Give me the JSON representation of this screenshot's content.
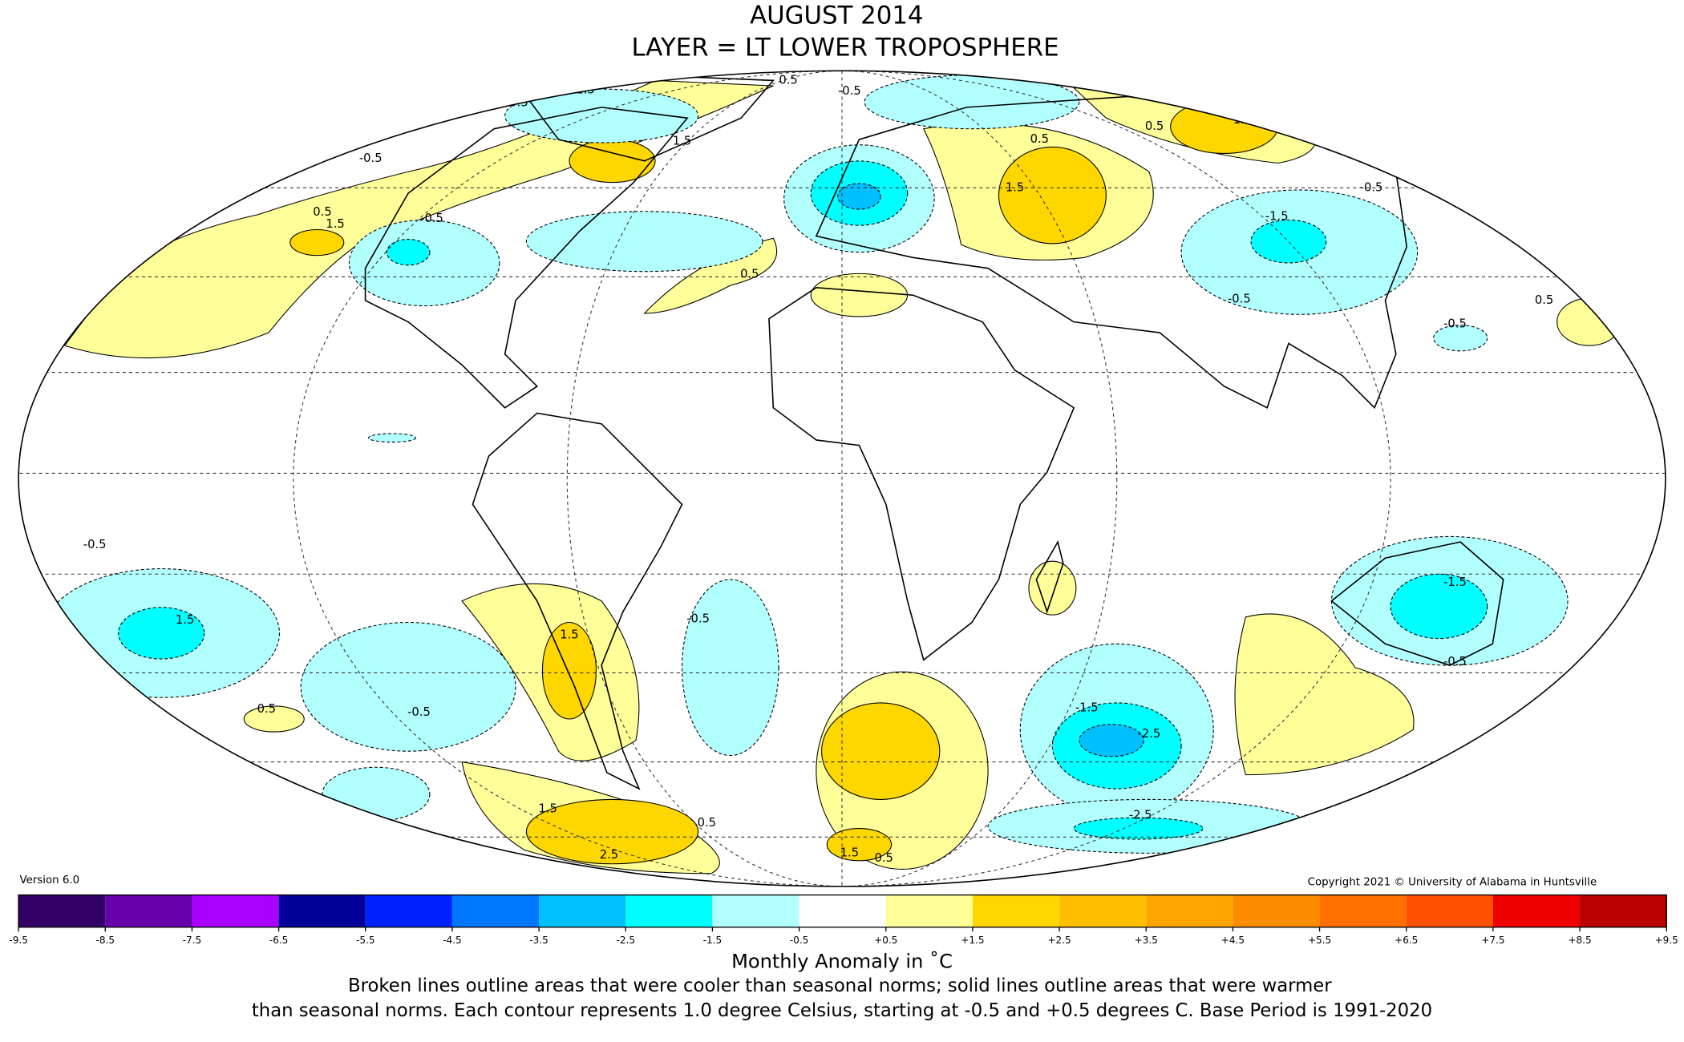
{
  "header": {
    "title": "AUGUST 2014",
    "subtitle": "LAYER = LT LOWER TROPOSPHERE"
  },
  "map": {
    "contour_labels": [
      "1.5",
      "0.5",
      "0.5",
      "-0.5",
      "0.5",
      "1.5",
      "-0.5",
      "1.5",
      "-0.5",
      "0.5",
      "1.5",
      "1.5",
      "0.5",
      "-0.5",
      "0.5",
      "-0.5",
      "-0.5",
      "-1.5",
      "0.5",
      "-0.5",
      "1.5",
      "-0.5",
      "-1.5",
      "-2.5",
      "-1.5",
      "-0.5",
      "1.5",
      "0.5",
      "1.5",
      "0.5",
      "2.5",
      "-2.5",
      "1.5",
      "-0.5",
      "0.5"
    ]
  },
  "footer": {
    "version": "Version 6.0",
    "copyright": "Copyright 2021 © University of Alabama in Huntsville"
  },
  "colorbar": {
    "colors": [
      "#330066",
      "#6600aa",
      "#aa00ff",
      "#000099",
      "#0022ff",
      "#0077ff",
      "#00c0ff",
      "#00ffff",
      "#b2ffff",
      "#ffffff",
      "#ffff99",
      "#ffd700",
      "#ffbf00",
      "#ffa500",
      "#ff8c00",
      "#ff7000",
      "#ff5000",
      "#ee0000",
      "#bb0000"
    ],
    "ticks": [
      -9.5,
      -8.5,
      -7.5,
      -6.5,
      -5.5,
      -4.5,
      -3.5,
      -2.5,
      -1.5,
      -0.5,
      {
        "value": 0.5,
        "label": "+0.5"
      },
      {
        "value": 1.5,
        "label": "+1.5"
      },
      {
        "value": 2.5,
        "label": "+2.5"
      },
      {
        "value": 3.5,
        "label": "+3.5"
      },
      {
        "value": 4.5,
        "label": "+4.5"
      },
      {
        "value": 5.5,
        "label": "+5.5"
      },
      {
        "value": 6.5,
        "label": "+6.5"
      },
      {
        "value": 7.5,
        "label": "+7.5"
      },
      {
        "value": 8.5,
        "label": "+8.5"
      },
      {
        "value": 9.5,
        "label": "+9.5"
      }
    ],
    "label": "Monthly Anomaly in ˚C"
  },
  "caption": [
    "Broken lines outline areas that were cooler than seasonal norms; solid lines outline areas that were warmer",
    "than seasonal norms. Each contour represents 1.0 degree Celsius, starting at -0.5 and +0.5 degrees C. Base Period is 1991-2020"
  ]
}
